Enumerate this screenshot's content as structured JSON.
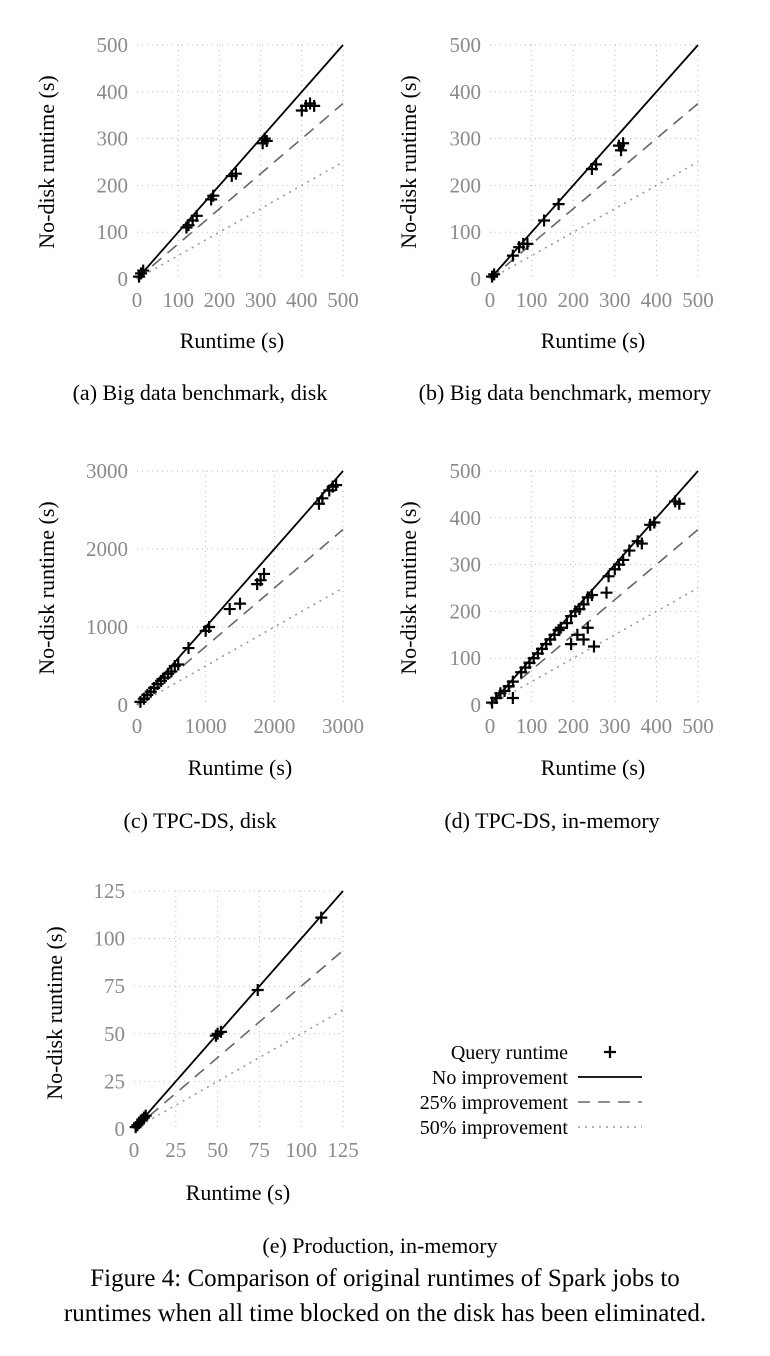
{
  "figure_caption": {
    "line1": "Figure 4: Comparison of original runtimes of Spark jobs to",
    "line2": "runtimes when all time blocked on the disk has been eliminated."
  },
  "legend": {
    "entries": [
      {
        "label": "Query runtime",
        "style": "marker",
        "color": "#000000"
      },
      {
        "label": "No improvement",
        "style": "solid",
        "color": "#000000"
      },
      {
        "label": "25% improvement",
        "style": "dashed",
        "color": "#666666"
      },
      {
        "label": "50% improvement",
        "style": "dotted",
        "color": "#999999"
      }
    ]
  },
  "chart_data": [
    {
      "type": "scatter",
      "caption": "(a)  Big data benchmark, disk",
      "xlabel": "Runtime (s)",
      "ylabel": "No-disk runtime (s)",
      "xlim": [
        0,
        500
      ],
      "ylim": [
        0,
        500
      ],
      "xticks": [
        0,
        100,
        200,
        300,
        400,
        500
      ],
      "yticks": [
        0,
        100,
        200,
        300,
        400,
        500
      ],
      "grid": true,
      "reference_lines": [
        {
          "slope": 1.0
        },
        {
          "slope": 0.75
        },
        {
          "slope": 0.5
        }
      ],
      "series": [
        {
          "points": [
            [
              5,
              5
            ],
            [
              10,
              12
            ],
            [
              15,
              18
            ],
            [
              120,
              110
            ],
            [
              125,
              115
            ],
            [
              135,
              125
            ],
            [
              145,
              135
            ],
            [
              180,
              170
            ],
            [
              185,
              178
            ],
            [
              230,
              220
            ],
            [
              240,
              225
            ],
            [
              305,
              290
            ],
            [
              310,
              300
            ],
            [
              315,
              295
            ],
            [
              400,
              360
            ],
            [
              410,
              370
            ],
            [
              420,
              375
            ],
            [
              430,
              370
            ]
          ]
        }
      ]
    },
    {
      "type": "scatter",
      "caption": "(b)  Big data benchmark, memory",
      "xlabel": "Runtime (s)",
      "ylabel": "No-disk runtime (s)",
      "xlim": [
        0,
        500
      ],
      "ylim": [
        0,
        500
      ],
      "xticks": [
        0,
        100,
        200,
        300,
        400,
        500
      ],
      "yticks": [
        0,
        100,
        200,
        300,
        400,
        500
      ],
      "grid": true,
      "reference_lines": [
        {
          "slope": 1.0
        },
        {
          "slope": 0.75
        },
        {
          "slope": 0.5
        }
      ],
      "series": [
        {
          "points": [
            [
              5,
              5
            ],
            [
              10,
              10
            ],
            [
              55,
              50
            ],
            [
              70,
              68
            ],
            [
              80,
              75
            ],
            [
              90,
              75
            ],
            [
              130,
              125
            ],
            [
              165,
              160
            ],
            [
              245,
              235
            ],
            [
              255,
              245
            ],
            [
              310,
              285
            ],
            [
              320,
              290
            ],
            [
              315,
              275
            ]
          ]
        }
      ]
    },
    {
      "type": "scatter",
      "caption": "(c)  TPC-DS, disk",
      "xlabel": "Runtime (s)",
      "ylabel": "No-disk runtime (s)",
      "xlim": [
        0,
        3000
      ],
      "ylim": [
        0,
        3000
      ],
      "xticks": [
        0,
        1000,
        2000,
        3000
      ],
      "yticks": [
        0,
        1000,
        2000,
        3000
      ],
      "grid": true,
      "reference_lines": [
        {
          "slope": 1.0
        },
        {
          "slope": 0.75
        },
        {
          "slope": 0.5
        }
      ],
      "series": [
        {
          "points": [
            [
              50,
              40
            ],
            [
              100,
              80
            ],
            [
              150,
              130
            ],
            [
              200,
              170
            ],
            [
              250,
              220
            ],
            [
              300,
              270
            ],
            [
              350,
              310
            ],
            [
              400,
              350
            ],
            [
              450,
              400
            ],
            [
              500,
              430
            ],
            [
              550,
              500
            ],
            [
              600,
              520
            ],
            [
              750,
              730
            ],
            [
              1000,
              950
            ],
            [
              1050,
              1000
            ],
            [
              1350,
              1230
            ],
            [
              1500,
              1300
            ],
            [
              1750,
              1550
            ],
            [
              1800,
              1600
            ],
            [
              1850,
              1680
            ],
            [
              2650,
              2580
            ],
            [
              2700,
              2650
            ],
            [
              2800,
              2750
            ],
            [
              2850,
              2800
            ],
            [
              2900,
              2820
            ]
          ]
        }
      ]
    },
    {
      "type": "scatter",
      "caption": "(d)  TPC-DS, in-memory",
      "xlabel": "Runtime (s)",
      "ylabel": "No-disk runtime (s)",
      "xlim": [
        0,
        500
      ],
      "ylim": [
        0,
        500
      ],
      "xticks": [
        0,
        100,
        200,
        300,
        400,
        500
      ],
      "yticks": [
        0,
        100,
        200,
        300,
        400,
        500
      ],
      "grid": true,
      "reference_lines": [
        {
          "slope": 1.0
        },
        {
          "slope": 0.75
        },
        {
          "slope": 0.5
        }
      ],
      "series": [
        {
          "points": [
            [
              5,
              5
            ],
            [
              15,
              15
            ],
            [
              25,
              25
            ],
            [
              35,
              30
            ],
            [
              45,
              40
            ],
            [
              55,
              50
            ],
            [
              55,
              15
            ],
            [
              75,
              70
            ],
            [
              85,
              80
            ],
            [
              95,
              90
            ],
            [
              105,
              100
            ],
            [
              115,
              110
            ],
            [
              125,
              120
            ],
            [
              135,
              130
            ],
            [
              145,
              140
            ],
            [
              155,
              150
            ],
            [
              165,
              160
            ],
            [
              170,
              165
            ],
            [
              185,
              175
            ],
            [
              195,
              130
            ],
            [
              195,
              190
            ],
            [
              205,
              200
            ],
            [
              215,
              205
            ],
            [
              225,
              215
            ],
            [
              235,
              230
            ],
            [
              245,
              235
            ],
            [
              210,
              150
            ],
            [
              225,
              140
            ],
            [
              235,
              165
            ],
            [
              250,
              125
            ],
            [
              280,
              240
            ],
            [
              285,
              275
            ],
            [
              300,
              290
            ],
            [
              310,
              300
            ],
            [
              320,
              310
            ],
            [
              335,
              330
            ],
            [
              355,
              350
            ],
            [
              365,
              345
            ],
            [
              385,
              385
            ],
            [
              395,
              390
            ],
            [
              445,
              435
            ],
            [
              455,
              430
            ]
          ]
        }
      ]
    },
    {
      "type": "scatter",
      "caption": "(e)  Production, in-memory",
      "xlabel": "Runtime (s)",
      "ylabel": "No-disk runtime (s)",
      "xlim": [
        0,
        125
      ],
      "ylim": [
        0,
        125
      ],
      "xticks": [
        0,
        25,
        50,
        75,
        100,
        125
      ],
      "yticks": [
        0,
        25,
        50,
        75,
        100,
        125
      ],
      "grid": true,
      "reference_lines": [
        {
          "slope": 1.0
        },
        {
          "slope": 0.75
        },
        {
          "slope": 0.5
        }
      ],
      "series": [
        {
          "points": [
            [
              1,
              1
            ],
            [
              2,
              2
            ],
            [
              3,
              3
            ],
            [
              5,
              5
            ],
            [
              6,
              6
            ],
            [
              7,
              7
            ],
            [
              49,
              49
            ],
            [
              50,
              50
            ],
            [
              52,
              51
            ],
            [
              74,
              73
            ],
            [
              112,
              111
            ]
          ]
        }
      ]
    }
  ]
}
